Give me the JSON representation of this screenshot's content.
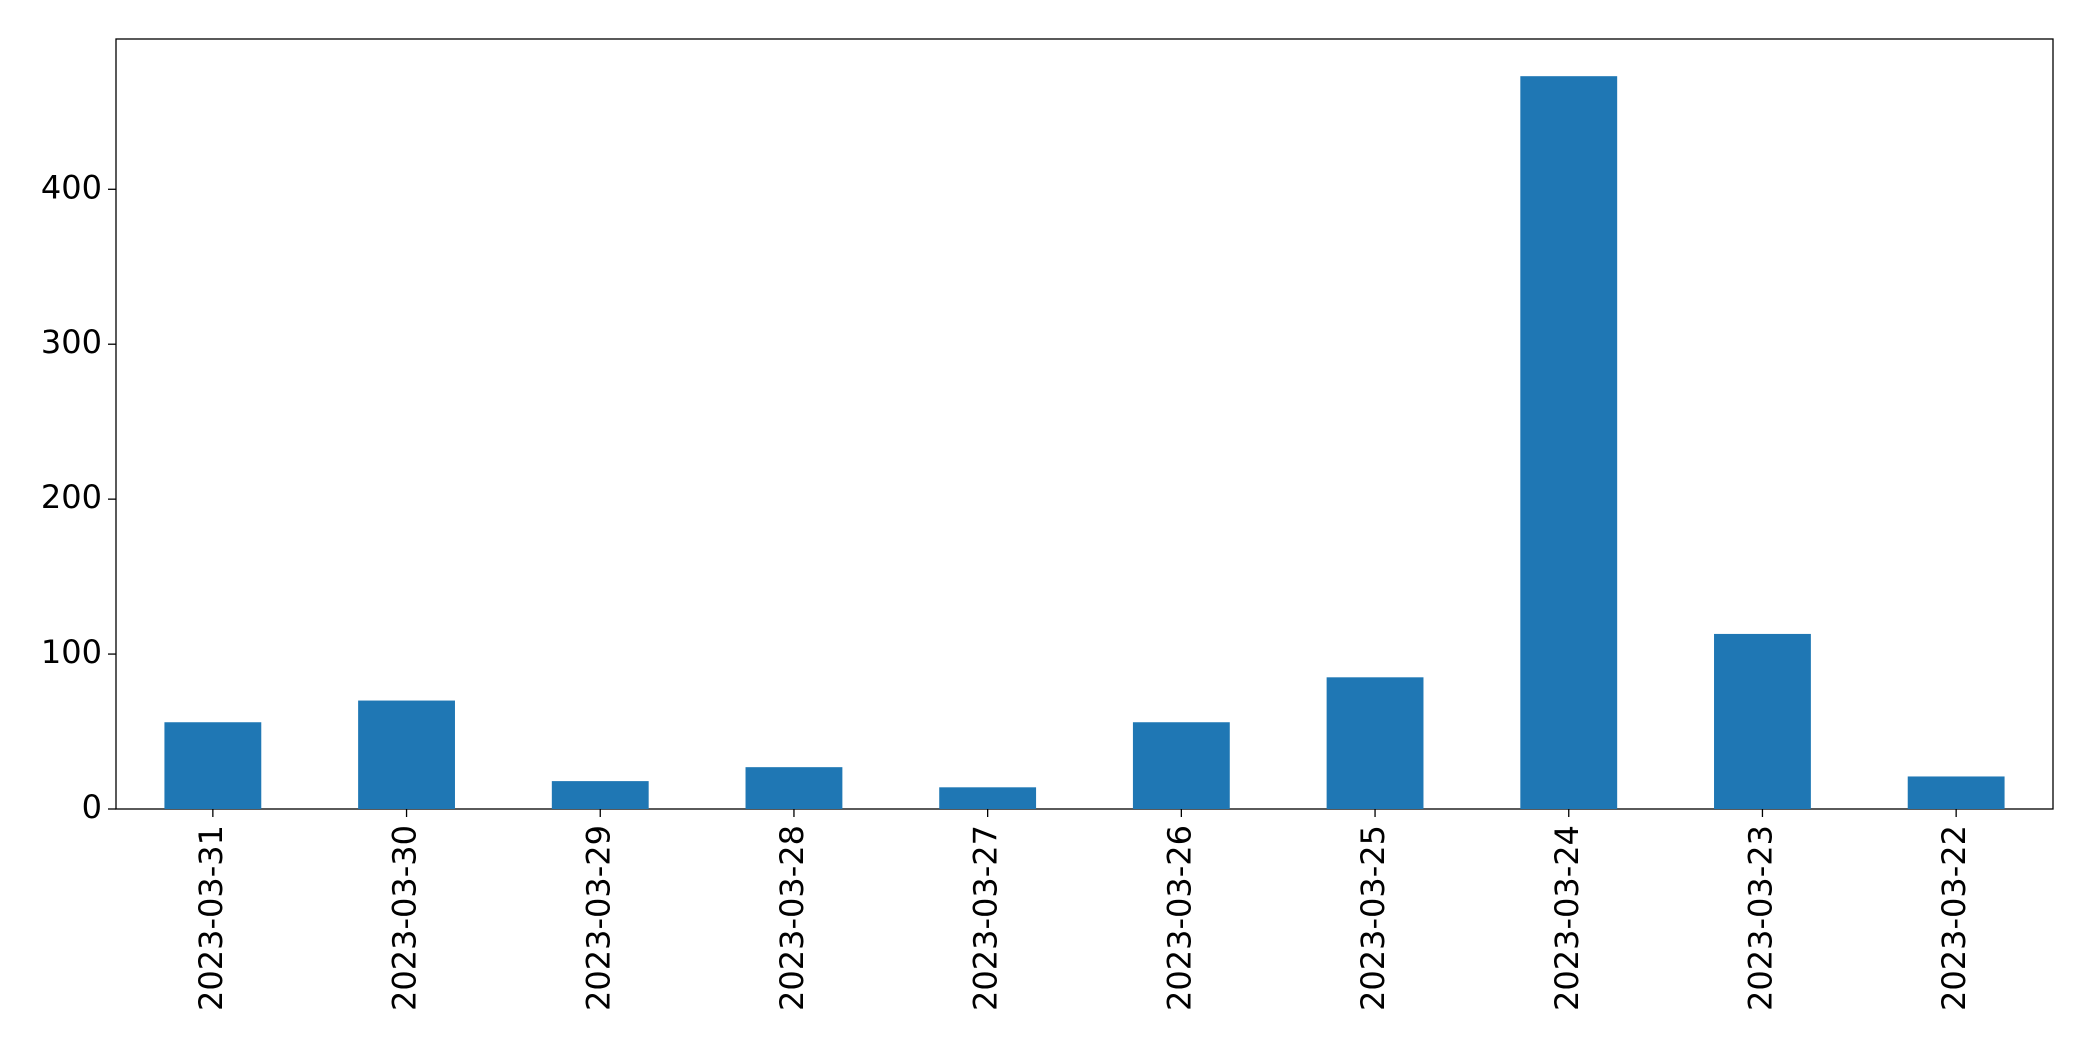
{
  "chart_data": {
    "type": "bar",
    "categories": [
      "2023-03-31",
      "2023-03-30",
      "2023-03-29",
      "2023-03-28",
      "2023-03-27",
      "2023-03-26",
      "2023-03-25",
      "2023-03-24",
      "2023-03-23",
      "2023-03-22"
    ],
    "values": [
      56,
      70,
      18,
      27,
      14,
      56,
      85,
      473,
      113,
      21
    ],
    "color": "#1f77b4",
    "ylim": [
      0,
      497
    ],
    "yticks": [
      0,
      100,
      200,
      300,
      400
    ],
    "grid": false
  }
}
